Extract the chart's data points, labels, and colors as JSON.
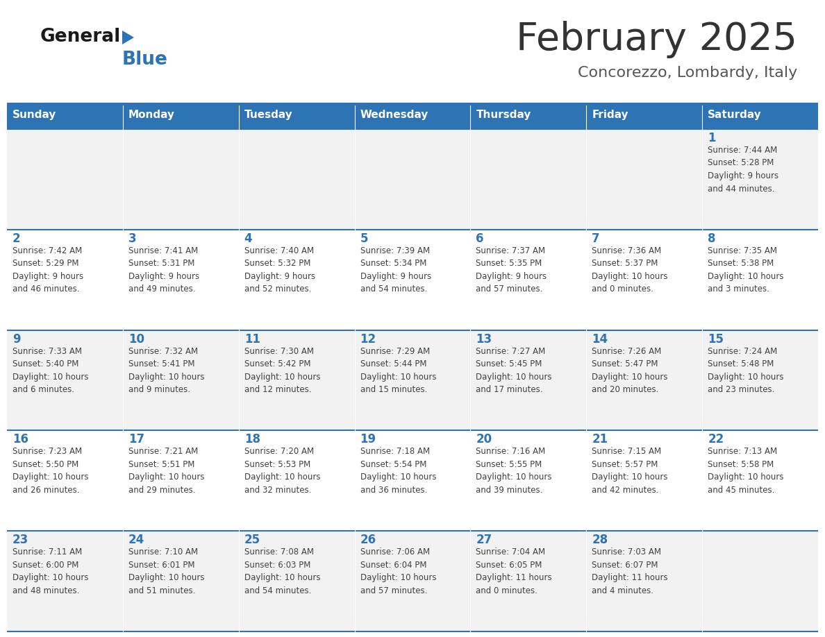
{
  "title": "February 2025",
  "subtitle": "Concorezzo, Lombardy, Italy",
  "header_bg": "#2E74B5",
  "header_text_color": "#FFFFFF",
  "weekdays": [
    "Sunday",
    "Monday",
    "Tuesday",
    "Wednesday",
    "Thursday",
    "Friday",
    "Saturday"
  ],
  "row_bg_even": "#F2F2F2",
  "row_bg_odd": "#FFFFFF",
  "day_number_color": "#2E74B5",
  "cell_text_color": "#404040",
  "title_color": "#333333",
  "subtitle_color": "#555555",
  "logo_general_color": "#1a1a1a",
  "logo_blue_color": "#2E74B5",
  "separator_color": "#2E74B5",
  "border_color": "#2E74B5",
  "calendar_data": [
    [
      {
        "day": null,
        "info": null
      },
      {
        "day": null,
        "info": null
      },
      {
        "day": null,
        "info": null
      },
      {
        "day": null,
        "info": null
      },
      {
        "day": null,
        "info": null
      },
      {
        "day": null,
        "info": null
      },
      {
        "day": 1,
        "info": "Sunrise: 7:44 AM\nSunset: 5:28 PM\nDaylight: 9 hours\nand 44 minutes."
      }
    ],
    [
      {
        "day": 2,
        "info": "Sunrise: 7:42 AM\nSunset: 5:29 PM\nDaylight: 9 hours\nand 46 minutes."
      },
      {
        "day": 3,
        "info": "Sunrise: 7:41 AM\nSunset: 5:31 PM\nDaylight: 9 hours\nand 49 minutes."
      },
      {
        "day": 4,
        "info": "Sunrise: 7:40 AM\nSunset: 5:32 PM\nDaylight: 9 hours\nand 52 minutes."
      },
      {
        "day": 5,
        "info": "Sunrise: 7:39 AM\nSunset: 5:34 PM\nDaylight: 9 hours\nand 54 minutes."
      },
      {
        "day": 6,
        "info": "Sunrise: 7:37 AM\nSunset: 5:35 PM\nDaylight: 9 hours\nand 57 minutes."
      },
      {
        "day": 7,
        "info": "Sunrise: 7:36 AM\nSunset: 5:37 PM\nDaylight: 10 hours\nand 0 minutes."
      },
      {
        "day": 8,
        "info": "Sunrise: 7:35 AM\nSunset: 5:38 PM\nDaylight: 10 hours\nand 3 minutes."
      }
    ],
    [
      {
        "day": 9,
        "info": "Sunrise: 7:33 AM\nSunset: 5:40 PM\nDaylight: 10 hours\nand 6 minutes."
      },
      {
        "day": 10,
        "info": "Sunrise: 7:32 AM\nSunset: 5:41 PM\nDaylight: 10 hours\nand 9 minutes."
      },
      {
        "day": 11,
        "info": "Sunrise: 7:30 AM\nSunset: 5:42 PM\nDaylight: 10 hours\nand 12 minutes."
      },
      {
        "day": 12,
        "info": "Sunrise: 7:29 AM\nSunset: 5:44 PM\nDaylight: 10 hours\nand 15 minutes."
      },
      {
        "day": 13,
        "info": "Sunrise: 7:27 AM\nSunset: 5:45 PM\nDaylight: 10 hours\nand 17 minutes."
      },
      {
        "day": 14,
        "info": "Sunrise: 7:26 AM\nSunset: 5:47 PM\nDaylight: 10 hours\nand 20 minutes."
      },
      {
        "day": 15,
        "info": "Sunrise: 7:24 AM\nSunset: 5:48 PM\nDaylight: 10 hours\nand 23 minutes."
      }
    ],
    [
      {
        "day": 16,
        "info": "Sunrise: 7:23 AM\nSunset: 5:50 PM\nDaylight: 10 hours\nand 26 minutes."
      },
      {
        "day": 17,
        "info": "Sunrise: 7:21 AM\nSunset: 5:51 PM\nDaylight: 10 hours\nand 29 minutes."
      },
      {
        "day": 18,
        "info": "Sunrise: 7:20 AM\nSunset: 5:53 PM\nDaylight: 10 hours\nand 32 minutes."
      },
      {
        "day": 19,
        "info": "Sunrise: 7:18 AM\nSunset: 5:54 PM\nDaylight: 10 hours\nand 36 minutes."
      },
      {
        "day": 20,
        "info": "Sunrise: 7:16 AM\nSunset: 5:55 PM\nDaylight: 10 hours\nand 39 minutes."
      },
      {
        "day": 21,
        "info": "Sunrise: 7:15 AM\nSunset: 5:57 PM\nDaylight: 10 hours\nand 42 minutes."
      },
      {
        "day": 22,
        "info": "Sunrise: 7:13 AM\nSunset: 5:58 PM\nDaylight: 10 hours\nand 45 minutes."
      }
    ],
    [
      {
        "day": 23,
        "info": "Sunrise: 7:11 AM\nSunset: 6:00 PM\nDaylight: 10 hours\nand 48 minutes."
      },
      {
        "day": 24,
        "info": "Sunrise: 7:10 AM\nSunset: 6:01 PM\nDaylight: 10 hours\nand 51 minutes."
      },
      {
        "day": 25,
        "info": "Sunrise: 7:08 AM\nSunset: 6:03 PM\nDaylight: 10 hours\nand 54 minutes."
      },
      {
        "day": 26,
        "info": "Sunrise: 7:06 AM\nSunset: 6:04 PM\nDaylight: 10 hours\nand 57 minutes."
      },
      {
        "day": 27,
        "info": "Sunrise: 7:04 AM\nSunset: 6:05 PM\nDaylight: 11 hours\nand 0 minutes."
      },
      {
        "day": 28,
        "info": "Sunrise: 7:03 AM\nSunset: 6:07 PM\nDaylight: 11 hours\nand 4 minutes."
      },
      {
        "day": null,
        "info": null
      }
    ]
  ]
}
